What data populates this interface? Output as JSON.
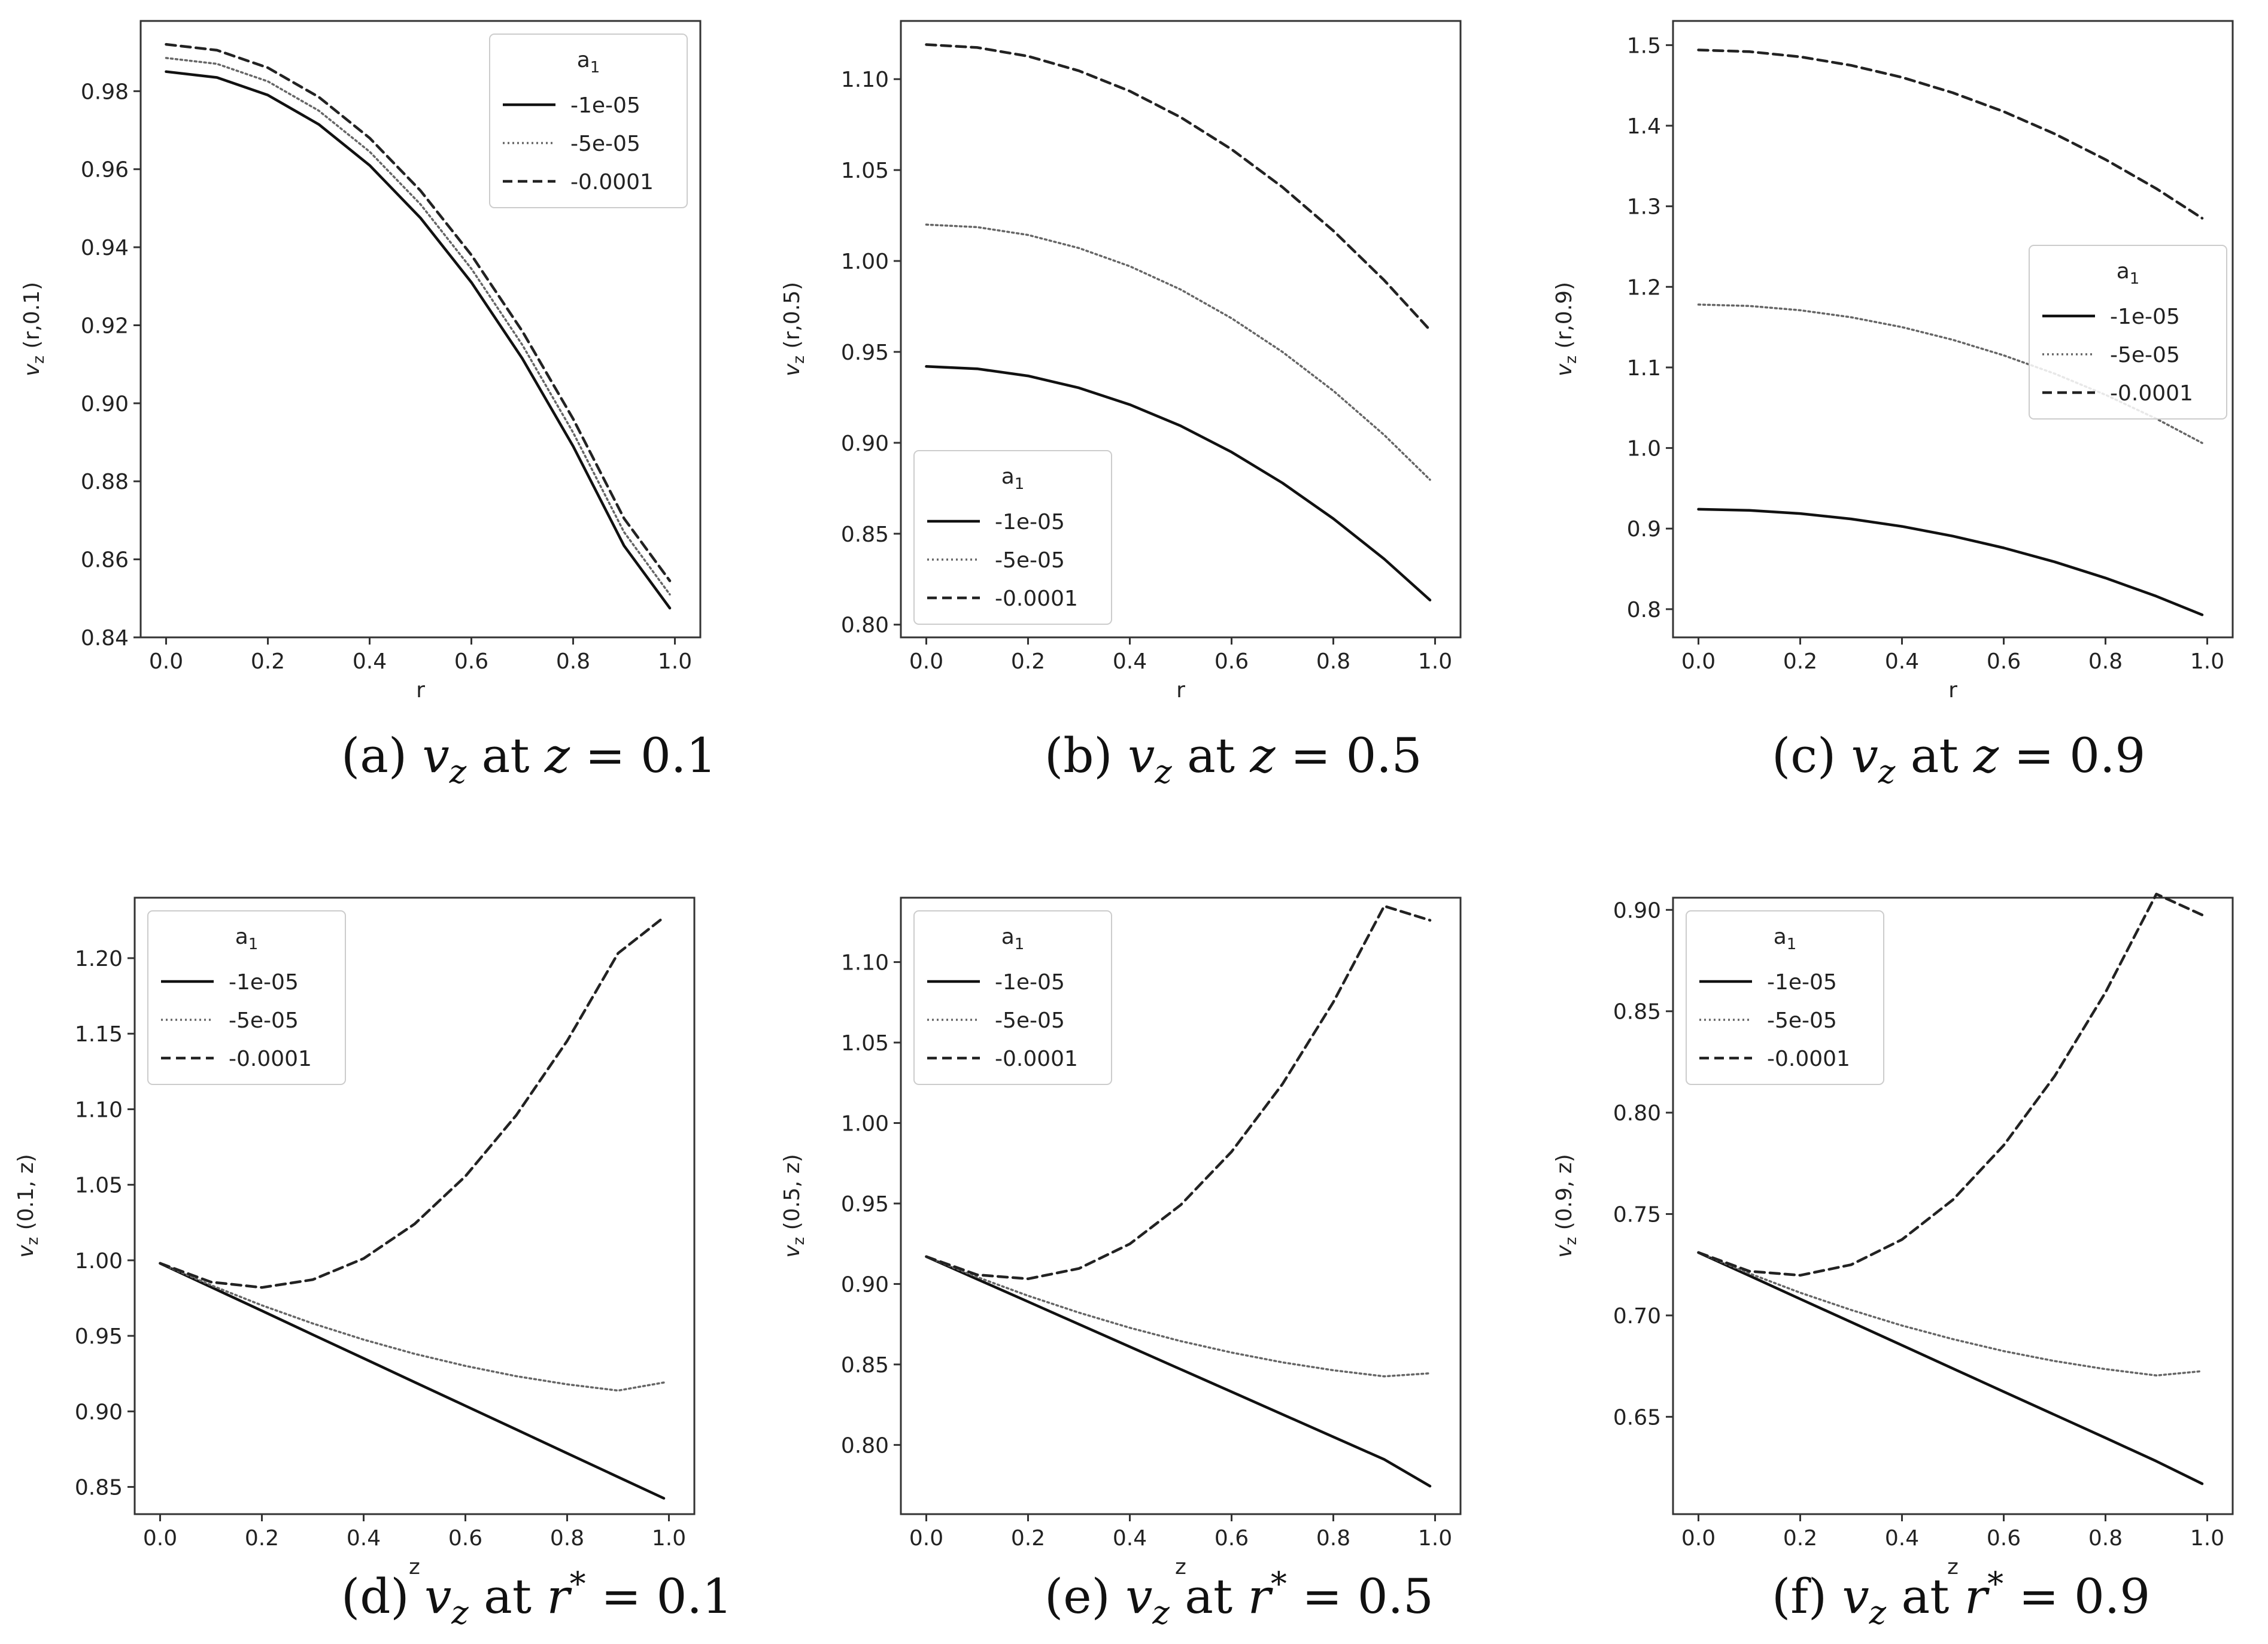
{
  "chart_data": [
    {
      "id": "a",
      "type": "line",
      "caption": "(a) v_z at z = 0.1",
      "cap_prefix": "(a) ",
      "cap_var": "z",
      "cap_value": "0.1",
      "xlabel": "r",
      "ylabel": "v_z (r,0.1)",
      "ylabel_sub": "(r,0.1)",
      "xlim": [
        -0.05,
        1.05
      ],
      "ylim": [
        0.84,
        0.998
      ],
      "xticks": [
        0.0,
        0.2,
        0.4,
        0.6,
        0.8,
        1.0
      ],
      "xtick_labels": [
        "0.0",
        "0.2",
        "0.4",
        "0.6",
        "0.8",
        "1.0"
      ],
      "yticks": [
        0.84,
        0.86,
        0.88,
        0.9,
        0.92,
        0.94,
        0.96,
        0.98
      ],
      "ytick_labels": [
        "0.84",
        "0.86",
        "0.88",
        "0.90",
        "0.92",
        "0.94",
        "0.96",
        "0.98"
      ],
      "legend_title": "a",
      "legend_title_sub": "1",
      "legend_loc": "top-right",
      "series": [
        {
          "name": "-1e-05",
          "style": "solid",
          "x": [
            0,
            0.1,
            0.2,
            0.3,
            0.4,
            0.5,
            0.6,
            0.7,
            0.8,
            0.9,
            0.99
          ],
          "y": [
            0.985,
            0.9835,
            0.979,
            0.9715,
            0.961,
            0.9475,
            0.931,
            0.9115,
            0.889,
            0.8635,
            0.8475
          ]
        },
        {
          "name": "-5e-05",
          "style": "dotted",
          "x": [
            0,
            0.1,
            0.2,
            0.3,
            0.4,
            0.5,
            0.6,
            0.7,
            0.8,
            0.9,
            0.99
          ],
          "y": [
            0.9885,
            0.987,
            0.9825,
            0.975,
            0.9645,
            0.951,
            0.9345,
            0.915,
            0.8925,
            0.867,
            0.851
          ]
        },
        {
          "name": "-0.0001",
          "style": "dashed",
          "x": [
            0,
            0.1,
            0.2,
            0.3,
            0.4,
            0.5,
            0.6,
            0.7,
            0.8,
            0.9,
            0.99
          ],
          "y": [
            0.992,
            0.9905,
            0.986,
            0.9785,
            0.968,
            0.9545,
            0.938,
            0.9185,
            0.896,
            0.8705,
            0.8545
          ]
        }
      ]
    },
    {
      "id": "b",
      "type": "line",
      "caption": "(b) v_z at z = 0.5",
      "cap_prefix": "(b) ",
      "cap_var": "z",
      "cap_value": "0.5",
      "xlabel": "r",
      "ylabel": "v_z (r,0.5)",
      "ylabel_sub": "(r,0.5)",
      "xlim": [
        -0.05,
        1.05
      ],
      "ylim": [
        0.793,
        1.132
      ],
      "xticks": [
        0.0,
        0.2,
        0.4,
        0.6,
        0.8,
        1.0
      ],
      "xtick_labels": [
        "0.0",
        "0.2",
        "0.4",
        "0.6",
        "0.8",
        "1.0"
      ],
      "yticks": [
        0.8,
        0.85,
        0.9,
        0.95,
        1.0,
        1.05,
        1.1
      ],
      "ytick_labels": [
        "0.80",
        "0.85",
        "0.90",
        "0.95",
        "1.00",
        "1.05",
        "1.10"
      ],
      "legend_title": "a",
      "legend_title_sub": "1",
      "legend_loc": "lower-left",
      "series": [
        {
          "name": "-1e-05",
          "style": "solid",
          "x": [
            0,
            0.1,
            0.2,
            0.3,
            0.4,
            0.5,
            0.6,
            0.7,
            0.8,
            0.9,
            0.99
          ],
          "y": [
            0.942,
            0.9407,
            0.9368,
            0.9302,
            0.921,
            0.9093,
            0.8949,
            0.8779,
            0.8583,
            0.8361,
            0.8135
          ]
        },
        {
          "name": "-5e-05",
          "style": "dotted",
          "x": [
            0,
            0.1,
            0.2,
            0.3,
            0.4,
            0.5,
            0.6,
            0.7,
            0.8,
            0.9,
            0.99
          ],
          "y": [
            1.02,
            1.0186,
            1.0143,
            1.0071,
            0.9971,
            0.9843,
            0.9685,
            0.95,
            0.9286,
            0.9043,
            0.8797
          ]
        },
        {
          "name": "-0.0001",
          "style": "dashed",
          "x": [
            0,
            0.1,
            0.2,
            0.3,
            0.4,
            0.5,
            0.6,
            0.7,
            0.8,
            0.9,
            0.99
          ],
          "y": [
            1.119,
            1.1174,
            1.1126,
            1.1046,
            1.0934,
            1.079,
            1.0614,
            1.0406,
            1.0166,
            0.9894,
            0.962
          ]
        }
      ]
    },
    {
      "id": "c",
      "type": "line",
      "caption": "(c) v_z at z = 0.9",
      "cap_prefix": "(c) ",
      "cap_var": "z",
      "cap_value": "0.9",
      "xlabel": "r",
      "ylabel": "v_z (r,0.9)",
      "ylabel_sub": "(r,0.9)",
      "xlim": [
        -0.05,
        1.05
      ],
      "ylim": [
        0.765,
        1.53
      ],
      "xticks": [
        0.0,
        0.2,
        0.4,
        0.6,
        0.8,
        1.0
      ],
      "xtick_labels": [
        "0.0",
        "0.2",
        "0.4",
        "0.6",
        "0.8",
        "1.0"
      ],
      "yticks": [
        0.8,
        0.9,
        1.0,
        1.1,
        1.2,
        1.3,
        1.4,
        1.5
      ],
      "ytick_labels": [
        "0.8",
        "0.9",
        "1.0",
        "1.1",
        "1.2",
        "1.3",
        "1.4",
        "1.5"
      ],
      "legend_title": "a",
      "legend_title_sub": "1",
      "legend_loc": "center-right",
      "series": [
        {
          "name": "-1e-05",
          "style": "solid",
          "x": [
            0,
            0.1,
            0.2,
            0.3,
            0.4,
            0.5,
            0.6,
            0.7,
            0.8,
            0.9,
            0.99
          ],
          "y": [
            0.924,
            0.9227,
            0.9187,
            0.912,
            0.9027,
            0.8907,
            0.876,
            0.8587,
            0.8387,
            0.816,
            0.793
          ]
        },
        {
          "name": "-5e-05",
          "style": "dotted",
          "x": [
            0,
            0.1,
            0.2,
            0.3,
            0.4,
            0.5,
            0.6,
            0.7,
            0.8,
            0.9,
            0.99
          ],
          "y": [
            1.178,
            1.1763,
            1.171,
            1.1623,
            1.15,
            1.1343,
            1.115,
            1.0923,
            1.066,
            1.0363,
            1.0062
          ]
        },
        {
          "name": "-0.0001",
          "style": "dashed",
          "x": [
            0,
            0.1,
            0.2,
            0.3,
            0.4,
            0.5,
            0.6,
            0.7,
            0.8,
            0.9,
            0.99
          ],
          "y": [
            1.494,
            1.4919,
            1.4855,
            1.4749,
            1.46,
            1.4409,
            1.4175,
            1.3899,
            1.358,
            1.3219,
            1.2852
          ]
        }
      ]
    },
    {
      "id": "d",
      "type": "line",
      "caption": "(d) v_z at r* = 0.1",
      "cap_prefix": "(d) ",
      "cap_var": "r",
      "cap_value": "0.1",
      "xlabel": "z",
      "ylabel": "v_z (0.1, z)",
      "ylabel_sub": "(0.1, z)",
      "xlim": [
        -0.05,
        1.05
      ],
      "ylim": [
        0.832,
        1.24
      ],
      "xticks": [
        0.0,
        0.2,
        0.4,
        0.6,
        0.8,
        1.0
      ],
      "xtick_labels": [
        "0.0",
        "0.2",
        "0.4",
        "0.6",
        "0.8",
        "1.0"
      ],
      "yticks": [
        0.85,
        0.9,
        0.95,
        1.0,
        1.05,
        1.1,
        1.15,
        1.2
      ],
      "ytick_labels": [
        "0.85",
        "0.90",
        "0.95",
        "1.00",
        "1.05",
        "1.10",
        "1.15",
        "1.20"
      ],
      "legend_title": "a",
      "legend_title_sub": "1",
      "legend_loc": "top-left",
      "series": [
        {
          "name": "-1e-05",
          "style": "solid",
          "x": [
            0,
            0.1,
            0.2,
            0.3,
            0.4,
            0.5,
            0.6,
            0.7,
            0.8,
            0.9,
            0.99
          ],
          "y": [
            0.998,
            0.9823,
            0.9666,
            0.9508,
            0.9351,
            0.9194,
            0.9037,
            0.888,
            0.8723,
            0.8566,
            0.8425
          ]
        },
        {
          "name": "-5e-05",
          "style": "dotted",
          "x": [
            0,
            0.1,
            0.2,
            0.3,
            0.4,
            0.5,
            0.6,
            0.7,
            0.8,
            0.9,
            0.99
          ],
          "y": [
            0.998,
            0.9835,
            0.9702,
            0.9582,
            0.9475,
            0.9381,
            0.9301,
            0.9233,
            0.9179,
            0.9138,
            0.9191
          ]
        },
        {
          "name": "-0.0001",
          "style": "dashed",
          "x": [
            0,
            0.1,
            0.2,
            0.3,
            0.4,
            0.5,
            0.6,
            0.7,
            0.8,
            0.9,
            0.99
          ],
          "y": [
            0.998,
            0.9856,
            0.982,
            0.9872,
            1.0012,
            1.024,
            1.0556,
            1.096,
            1.1452,
            1.2032,
            1.227
          ]
        }
      ]
    },
    {
      "id": "e",
      "type": "line",
      "caption": "(e) v_z at r* = 0.5",
      "cap_prefix": "(e) ",
      "cap_var": "r",
      "cap_value": "0.5",
      "xlabel": "z",
      "ylabel": "v_z (0.5, z)",
      "ylabel_sub": "(0.5, z)",
      "xlim": [
        -0.05,
        1.05
      ],
      "ylim": [
        0.757,
        1.14
      ],
      "xticks": [
        0.0,
        0.2,
        0.4,
        0.6,
        0.8,
        1.0
      ],
      "xtick_labels": [
        "0.0",
        "0.2",
        "0.4",
        "0.6",
        "0.8",
        "1.0"
      ],
      "yticks": [
        0.8,
        0.85,
        0.9,
        0.95,
        1.0,
        1.05,
        1.1
      ],
      "ytick_labels": [
        "0.80",
        "0.85",
        "0.90",
        "0.95",
        "1.00",
        "1.05",
        "1.10"
      ],
      "legend_title": "a",
      "legend_title_sub": "1",
      "legend_loc": "top-left",
      "series": [
        {
          "name": "-1e-05",
          "style": "solid",
          "x": [
            0,
            0.1,
            0.2,
            0.3,
            0.4,
            0.5,
            0.6,
            0.7,
            0.8,
            0.9,
            0.99
          ],
          "y": [
            0.917,
            0.903,
            0.889,
            0.875,
            0.861,
            0.847,
            0.833,
            0.819,
            0.805,
            0.791,
            0.7744
          ]
        },
        {
          "name": "-5e-05",
          "style": "dotted",
          "x": [
            0,
            0.1,
            0.2,
            0.3,
            0.4,
            0.5,
            0.6,
            0.7,
            0.8,
            0.9,
            0.99
          ],
          "y": [
            0.917,
            0.9043,
            0.8927,
            0.8822,
            0.8728,
            0.8645,
            0.8574,
            0.8513,
            0.8464,
            0.8426,
            0.8445
          ]
        },
        {
          "name": "-0.0001",
          "style": "dashed",
          "x": [
            0,
            0.1,
            0.2,
            0.3,
            0.4,
            0.5,
            0.6,
            0.7,
            0.8,
            0.9,
            0.99
          ],
          "y": [
            0.917,
            0.9057,
            0.9032,
            0.9096,
            0.9249,
            0.9491,
            0.9822,
            1.0242,
            1.0751,
            1.1348,
            1.126
          ]
        }
      ]
    },
    {
      "id": "f",
      "type": "line",
      "caption": "(f) v_z at r* = 0.9",
      "cap_prefix": "(f) ",
      "cap_var": "r",
      "cap_value": "0.9",
      "xlabel": "z",
      "ylabel": "v_z (0.9, z)",
      "ylabel_sub": "(0.9, z)",
      "xlim": [
        -0.05,
        1.05
      ],
      "ylim": [
        0.602,
        0.906
      ],
      "xticks": [
        0.0,
        0.2,
        0.4,
        0.6,
        0.8,
        1.0
      ],
      "xtick_labels": [
        "0.0",
        "0.2",
        "0.4",
        "0.6",
        "0.8",
        "1.0"
      ],
      "yticks": [
        0.65,
        0.7,
        0.75,
        0.8,
        0.85,
        0.9
      ],
      "ytick_labels": [
        "0.65",
        "0.70",
        "0.75",
        "0.80",
        "0.85",
        "0.90"
      ],
      "legend_title": "a",
      "legend_title_sub": "1",
      "legend_loc": "top-left",
      "series": [
        {
          "name": "-1e-05",
          "style": "solid",
          "x": [
            0,
            0.1,
            0.2,
            0.3,
            0.4,
            0.5,
            0.6,
            0.7,
            0.8,
            0.9,
            0.99
          ],
          "y": [
            0.731,
            0.7196,
            0.7081,
            0.6967,
            0.6853,
            0.6738,
            0.6624,
            0.651,
            0.6396,
            0.6281,
            0.617
          ]
        },
        {
          "name": "-5e-05",
          "style": "dotted",
          "x": [
            0,
            0.1,
            0.2,
            0.3,
            0.4,
            0.5,
            0.6,
            0.7,
            0.8,
            0.9,
            0.99
          ],
          "y": [
            0.731,
            0.7207,
            0.7112,
            0.7027,
            0.695,
            0.6883,
            0.6824,
            0.6775,
            0.6735,
            0.6704,
            0.6725
          ]
        },
        {
          "name": "-0.0001",
          "style": "dashed",
          "x": [
            0,
            0.1,
            0.2,
            0.3,
            0.4,
            0.5,
            0.6,
            0.7,
            0.8,
            0.9,
            0.99
          ],
          "y": [
            0.731,
            0.7218,
            0.7198,
            0.725,
            0.7374,
            0.757,
            0.7839,
            0.818,
            0.8593,
            0.9078,
            0.8975
          ]
        }
      ]
    }
  ]
}
